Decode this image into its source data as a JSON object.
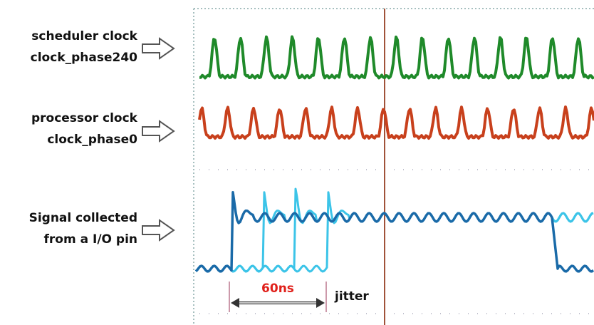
{
  "signals": [
    {
      "lines": [
        "scheduler clock",
        "clock_phase240"
      ]
    },
    {
      "lines": [
        "processor clock",
        "clock_phase0"
      ]
    },
    {
      "lines": [
        "Signal collected",
        "from a I/O pin"
      ]
    }
  ],
  "annotations": {
    "interval": "60ns",
    "jitter": "jitter"
  }
}
